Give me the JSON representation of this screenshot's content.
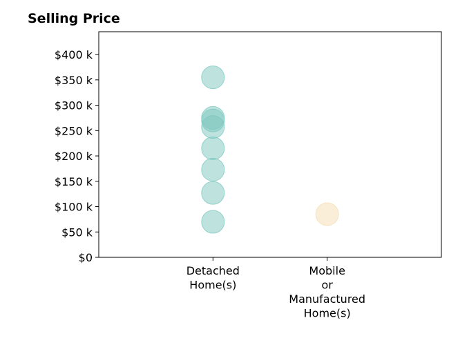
{
  "chart_data": {
    "type": "scatter",
    "title": "Selling Price",
    "xlabel": "",
    "ylabel": "",
    "categories": [
      [
        "Detached",
        "Home(s)"
      ],
      [
        "Mobile",
        "or",
        "Manufactured",
        "Home(s)"
      ]
    ],
    "y_ticks": [
      {
        "value": 0,
        "label": "$0"
      },
      {
        "value": 50000,
        "label": "$50 k"
      },
      {
        "value": 100000,
        "label": "$100 k"
      },
      {
        "value": 150000,
        "label": "$150 k"
      },
      {
        "value": 200000,
        "label": "$200 k"
      },
      {
        "value": 250000,
        "label": "$250 k"
      },
      {
        "value": 300000,
        "label": "$300 k"
      },
      {
        "value": 350000,
        "label": "$350 k"
      },
      {
        "value": 400000,
        "label": "$400 k"
      }
    ],
    "ylim": [
      0,
      445000
    ],
    "xlim": [
      -1,
      2
    ],
    "grid": false,
    "series": [
      {
        "category_index": 0,
        "color": "#7ec8c0",
        "values": [
          70000,
          127000,
          173000,
          215000,
          257000,
          270000,
          275000,
          355000
        ]
      },
      {
        "category_index": 1,
        "color": "#f5deb3",
        "values": [
          85000
        ]
      }
    ]
  }
}
